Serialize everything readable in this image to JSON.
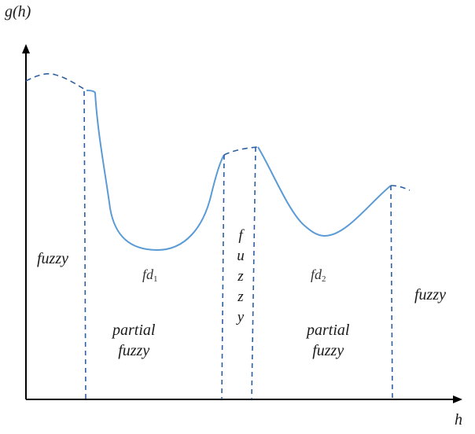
{
  "axes": {
    "y_label": "g(h)",
    "x_label": "h"
  },
  "regions": {
    "left_fuzzy": "fuzzy",
    "right_fuzzy": "fuzzy",
    "middle_fuzzy_letters": [
      "f",
      "u",
      "z",
      "z",
      "y"
    ],
    "partial_1": [
      "partial",
      "fuzzy"
    ],
    "partial_2": [
      "partial",
      "fuzzy"
    ]
  },
  "subsets": {
    "fd1": {
      "base": "fd",
      "sub": "1"
    },
    "fd2": {
      "base": "fd",
      "sub": "2"
    }
  },
  "colors": {
    "curve": "#5b9bd5",
    "dashes": "#2e5fa3",
    "axis": "#000000"
  }
}
